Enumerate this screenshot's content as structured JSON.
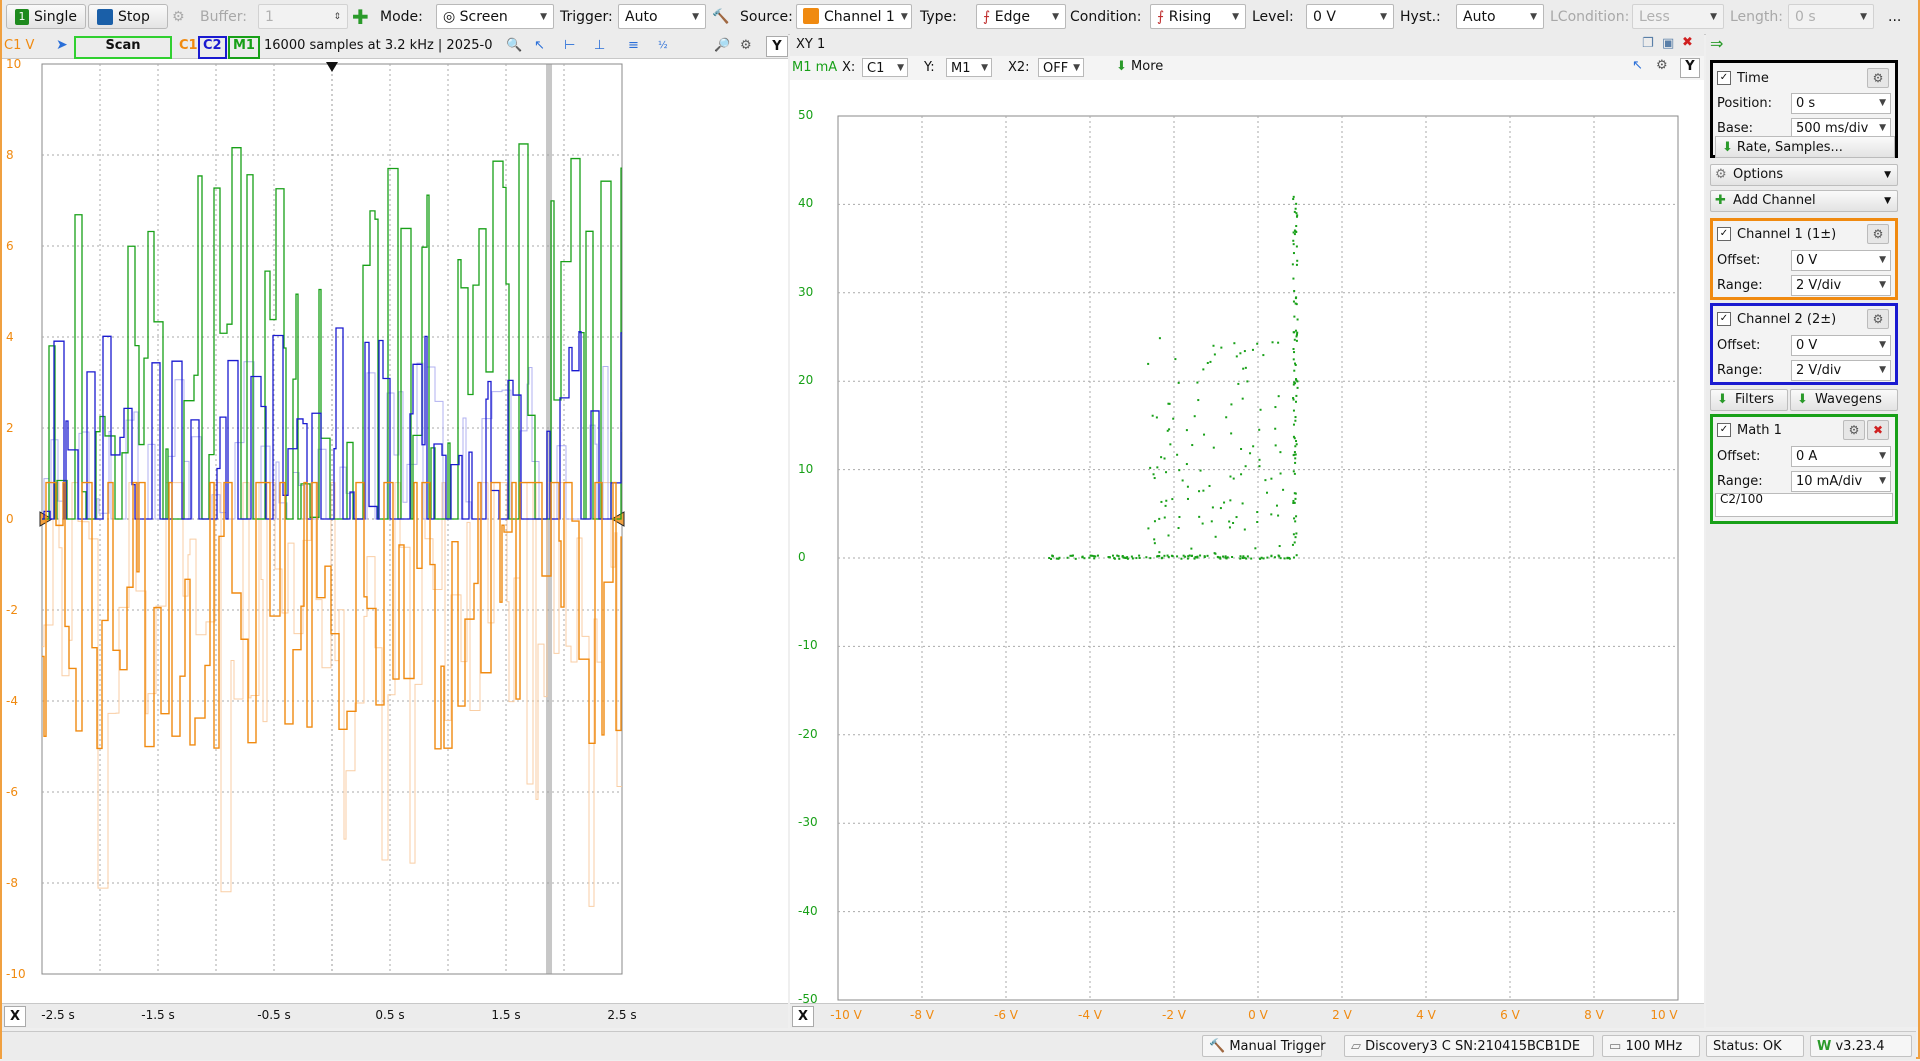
{
  "toolbar": {
    "single": "Single",
    "stop": "Stop",
    "buffer_label": "Buffer:",
    "buffer_value": "1",
    "mode_label": "Mode:",
    "mode_value": "Screen",
    "trigger_label": "Trigger:",
    "trigger_value": "Auto",
    "source_label": "Source:",
    "source_value": "Channel 1",
    "type_label": "Type:",
    "type_value": "Edge",
    "condition_label": "Condition:",
    "condition_value": "Rising",
    "level_label": "Level:",
    "level_value": "0 V",
    "hyst_label": "Hyst.:",
    "hyst_value": "Auto",
    "lcondition_label": "LCondition:",
    "lcondition_value": "Less",
    "length_label": "Length:",
    "length_value": "0 s",
    "more": "..."
  },
  "scope": {
    "unit_label": "C1 V",
    "scan": "Scan",
    "c1": "C1",
    "c2": "C2",
    "m1": "M1",
    "info": "16000 samples at 3.2 kHz  | 2025-0",
    "y_btn": "Y",
    "x_btn": "X",
    "y_ticks": [
      "10",
      "8",
      "6",
      "4",
      "2",
      "0",
      "-2",
      "-4",
      "-6",
      "-8",
      "-10"
    ],
    "x_ticks": [
      "-2.5 s",
      "-1.5 s",
      "-0.5 s",
      "0.5 s",
      "1.5 s",
      "2.5 s"
    ]
  },
  "xy": {
    "title": "XY 1",
    "unit_label": "M1 mA",
    "x_label": "X:",
    "x_value": "C1",
    "y_label": "Y:",
    "y_value": "M1",
    "x2_label": "X2:",
    "x2_value": "OFF",
    "more": "More",
    "y_btn": "Y",
    "x_btn": "X",
    "y_ticks": [
      "50",
      "40",
      "30",
      "20",
      "10",
      "0",
      "-10",
      "-20",
      "-30",
      "-40",
      "-50"
    ],
    "x_ticks": [
      "-10 V",
      "-8 V",
      "-6 V",
      "-4 V",
      "-2 V",
      "0 V",
      "2 V",
      "4 V",
      "6 V",
      "8 V",
      "10 V"
    ]
  },
  "dock": {
    "time": {
      "title": "Time",
      "position_label": "Position:",
      "position_value": "0 s",
      "base_label": "Base:",
      "base_value": "500 ms/div",
      "rate_button": "Rate, Samples..."
    },
    "options": "Options",
    "add_channel": "Add Channel",
    "channel1": {
      "title": "Channel 1 (1±)",
      "offset_label": "Offset:",
      "offset_value": "0 V",
      "range_label": "Range:",
      "range_value": "2 V/div"
    },
    "channel2": {
      "title": "Channel 2 (2±)",
      "offset_label": "Offset:",
      "offset_value": "0 V",
      "range_label": "Range:",
      "range_value": "2 V/div"
    },
    "filters": "Filters",
    "wavegens": "Wavegens",
    "math1": {
      "title": "Math 1",
      "offset_label": "Offset:",
      "offset_value": "0 A",
      "range_label": "Range:",
      "range_value": "10 mA/div",
      "formula": "C2/100"
    }
  },
  "status": {
    "manual_trigger": "Manual Trigger",
    "device": "Discovery3 C SN:210415BCB1DE",
    "clock": "100 MHz",
    "status": "Status: OK",
    "version": "v3.23.4"
  },
  "colors": {
    "c1": "#f08a10",
    "c2": "#1a1ad0",
    "m1": "#18a018",
    "c1_light": "#f8c99a",
    "c2_light": "#a8a8ee"
  }
}
